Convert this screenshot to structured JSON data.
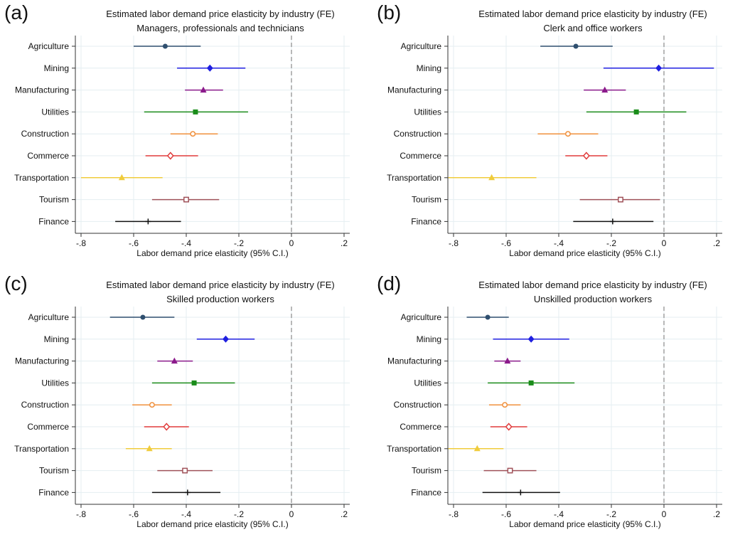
{
  "chart_data": [
    {
      "type": "scatter",
      "panel_label": "(a)",
      "title": "Estimated labor demand price elasticity by industry (FE)",
      "subtitle": "Managers, professionals and technicians",
      "xlabel": "Labor demand price elasticity (95% C.I.)",
      "xlim": [
        -0.8,
        0.2
      ],
      "xticks": [
        -0.8,
        -0.6,
        -0.4,
        -0.2,
        0,
        0.2
      ],
      "xtick_labels": [
        "-.8",
        "-.6",
        "-.4",
        "-.2",
        "0",
        ".2"
      ],
      "reference_line": 0,
      "grid": true,
      "categories": [
        "Agriculture",
        "Mining",
        "Manufacturing",
        "Utilities",
        "Construction",
        "Commerce",
        "Transportation",
        "Tourism",
        "Finance"
      ],
      "estimates": [
        -0.48,
        -0.31,
        -0.335,
        -0.365,
        -0.375,
        -0.46,
        -0.645,
        -0.4,
        -0.545
      ],
      "ci_low": [
        -0.6,
        -0.435,
        -0.405,
        -0.56,
        -0.46,
        -0.555,
        -0.8,
        -0.53,
        -0.67
      ],
      "ci_high": [
        -0.345,
        -0.175,
        -0.26,
        -0.165,
        -0.28,
        -0.355,
        -0.49,
        -0.275,
        -0.42
      ]
    },
    {
      "type": "scatter",
      "panel_label": "(b)",
      "title": "Estimated labor demand price elasticity by industry (FE)",
      "subtitle": "Clerk and office workers",
      "xlabel": "Labor demand price elasticity (95% C.I.)",
      "xlim": [
        -0.8,
        0.2
      ],
      "xticks": [
        -0.8,
        -0.6,
        -0.4,
        -0.2,
        0,
        0.2
      ],
      "xtick_labels": [
        "-.8",
        "-.6",
        "-.4",
        "-.2",
        "0",
        ".2"
      ],
      "reference_line": 0,
      "grid": true,
      "categories": [
        "Agriculture",
        "Mining",
        "Manufacturing",
        "Utilities",
        "Construction",
        "Commerce",
        "Transportation",
        "Tourism",
        "Finance"
      ],
      "estimates": [
        -0.335,
        -0.02,
        -0.225,
        -0.105,
        -0.365,
        -0.295,
        -0.655,
        -0.165,
        -0.195
      ],
      "ci_low": [
        -0.47,
        -0.23,
        -0.305,
        -0.295,
        -0.48,
        -0.375,
        -0.82,
        -0.32,
        -0.345
      ],
      "ci_high": [
        -0.195,
        0.19,
        -0.145,
        0.085,
        -0.25,
        -0.215,
        -0.485,
        -0.015,
        -0.04
      ]
    },
    {
      "type": "scatter",
      "panel_label": "(c)",
      "title": "Estimated labor demand price elasticity by industry (FE)",
      "subtitle": "Skilled production workers",
      "xlabel": "Labor demand price elasticity (95% C.I.)",
      "xlim": [
        -0.8,
        0.2
      ],
      "xticks": [
        -0.8,
        -0.6,
        -0.4,
        -0.2,
        0,
        0.2
      ],
      "xtick_labels": [
        "-.8",
        "-.6",
        "-.4",
        "-.2",
        "0",
        ".2"
      ],
      "reference_line": 0,
      "grid": true,
      "categories": [
        "Agriculture",
        "Mining",
        "Manufacturing",
        "Utilities",
        "Construction",
        "Commerce",
        "Transportation",
        "Tourism",
        "Finance"
      ],
      "estimates": [
        -0.565,
        -0.25,
        -0.445,
        -0.37,
        -0.53,
        -0.475,
        -0.54,
        -0.405,
        -0.395
      ],
      "ci_low": [
        -0.69,
        -0.36,
        -0.51,
        -0.53,
        -0.605,
        -0.56,
        -0.63,
        -0.51,
        -0.53
      ],
      "ci_high": [
        -0.445,
        -0.14,
        -0.375,
        -0.215,
        -0.455,
        -0.39,
        -0.455,
        -0.3,
        -0.27
      ]
    },
    {
      "type": "scatter",
      "panel_label": "(d)",
      "title": "Estimated labor demand price elasticity by industry (FE)",
      "subtitle": "Unskilled production workers",
      "xlabel": "Labor demand price elasticity (95% C.I.)",
      "xlim": [
        -0.8,
        0.2
      ],
      "xticks": [
        -0.8,
        -0.6,
        -0.4,
        -0.2,
        0,
        0.2
      ],
      "xtick_labels": [
        "-.8",
        "-.6",
        "-.4",
        "-.2",
        "0",
        ".2"
      ],
      "reference_line": 0,
      "grid": true,
      "categories": [
        "Agriculture",
        "Mining",
        "Manufacturing",
        "Utilities",
        "Construction",
        "Commerce",
        "Transportation",
        "Tourism",
        "Finance"
      ],
      "estimates": [
        -0.67,
        -0.505,
        -0.595,
        -0.505,
        -0.605,
        -0.59,
        -0.71,
        -0.585,
        -0.545
      ],
      "ci_low": [
        -0.75,
        -0.65,
        -0.645,
        -0.67,
        -0.665,
        -0.66,
        -0.82,
        -0.685,
        -0.69
      ],
      "ci_high": [
        -0.59,
        -0.36,
        -0.545,
        -0.34,
        -0.545,
        -0.52,
        -0.61,
        -0.485,
        -0.395
      ]
    }
  ],
  "style": {
    "series_colors": [
      "#2f4f6f",
      "#1f1fe0",
      "#8b1a8b",
      "#1a8c1a",
      "#f0903c",
      "#e03c3c",
      "#f0cc3c",
      "#a0525a",
      "#111111"
    ],
    "markers": [
      "circle",
      "diamond",
      "triangle",
      "square",
      "circle-open",
      "diamond-open",
      "triangle",
      "square-open",
      "plus"
    ],
    "grid_color": "#e4eef1",
    "reference_line_color": "#999999"
  }
}
